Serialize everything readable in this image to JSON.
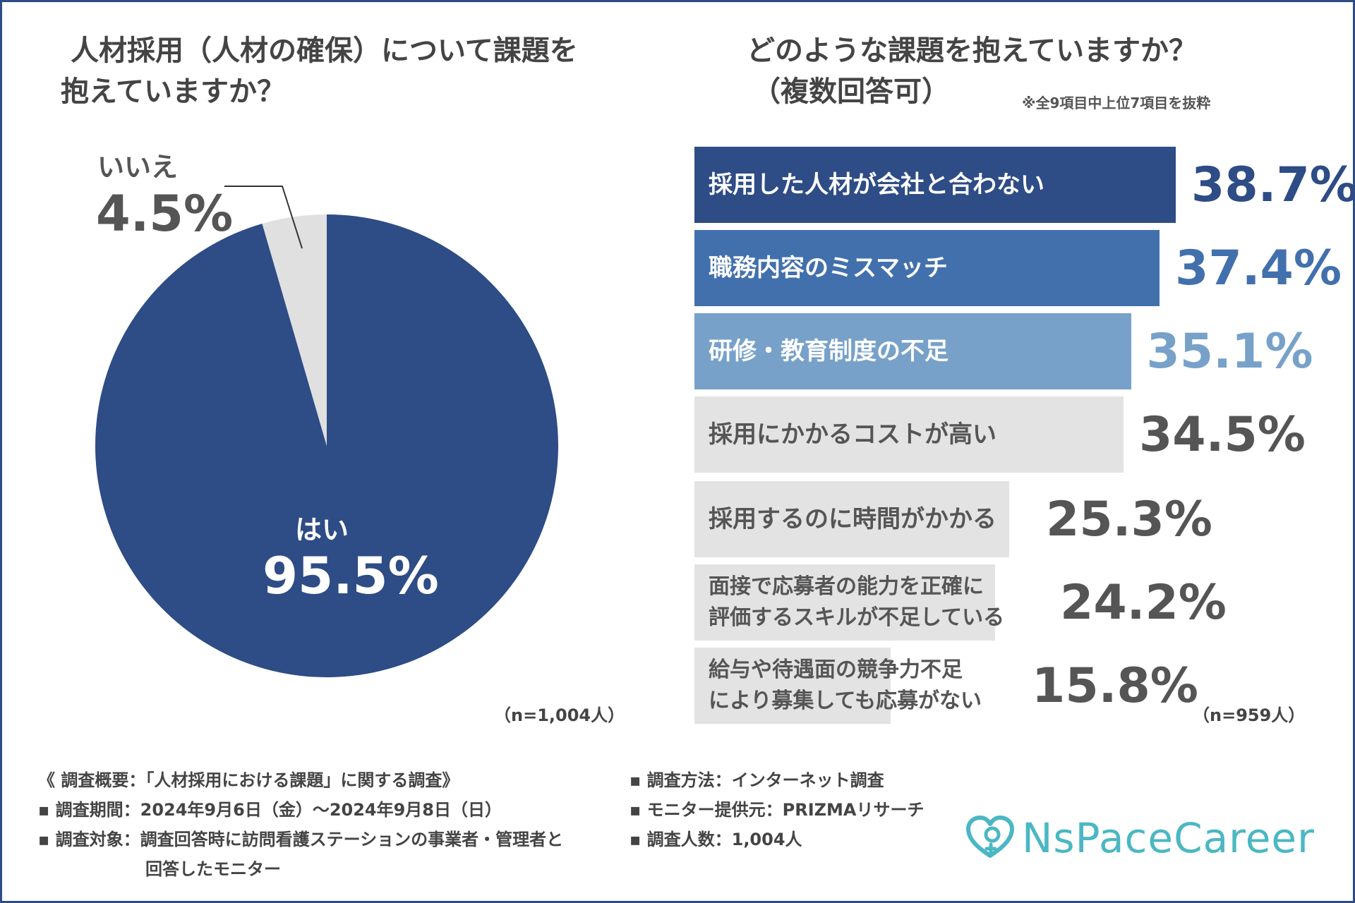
{
  "pie_title": {
    "line1": "人材採用（人材の確保）について課題を",
    "line2": "抱えていますか？"
  },
  "bar_title": {
    "line1": "どのような課題を抱えていますか？",
    "line2": "（複数回答可）"
  },
  "note": "※全9項目中上位7項目を抜粋",
  "colors": {
    "navy": "#2e4c85",
    "mid_blue": "#4270ad",
    "light_blue": "#77a1c9",
    "gray_bar": "#e3e3e3",
    "gray_value": "#555555",
    "pie_gray": "#e0e0e0",
    "logo": "#4bb7c4"
  },
  "chart_data": [
    {
      "type": "pie",
      "title": "人材採用（人材の確保）について課題を抱えていますか？",
      "slices": [
        {
          "label": "はい",
          "value": 95.5,
          "display": "95.5%"
        },
        {
          "label": "いいえ",
          "value": 4.5,
          "display": "4.5%"
        }
      ],
      "n_label": "（n=1,004人）"
    },
    {
      "type": "bar",
      "orientation": "horizontal",
      "title": "どのような課題を抱えていますか？（複数回答可）",
      "items": [
        {
          "label": "採用した人材が会社と合わない",
          "value": 38.7,
          "display": "38.7%"
        },
        {
          "label": "職務内容のミスマッチ",
          "value": 37.4,
          "display": "37.4%"
        },
        {
          "label": "研修・教育制度の不足",
          "value": 35.1,
          "display": "35.1%"
        },
        {
          "label": "採用にかかるコストが高い",
          "value": 34.5,
          "display": "34.5%"
        },
        {
          "label": "採用するのに時間がかかる",
          "value": 25.3,
          "display": "25.3%"
        },
        {
          "label": "面接で応募者の能力を正確に\n評価するスキルが不足している",
          "value": 24.2,
          "display": "24.2%"
        },
        {
          "label": "給与や待遇面の競争力不足\nにより募集しても応募がない",
          "value": 15.8,
          "display": "15.8%"
        }
      ],
      "n_label": "（n=959人）"
    }
  ],
  "footer": {
    "summary": "《 調査概要：「人材採用における課題」に関する調査》",
    "period": "▪ 調査期間：2024年9月6日（金）〜2024年9月8日（日）",
    "target_line1": "▪ 調査対象：調査回答時に訪問看護ステーションの事業者・管理者と",
    "target_line2": "回答したモニター",
    "method": "▪ 調査方法：インターネット調査",
    "provider": "▪ モニター提供元：PRIZMAリサーチ",
    "count": "▪ 調査人数：1,004人"
  },
  "logo": {
    "icon": "heart-plus-icon",
    "text": "NsPaceCareer"
  }
}
